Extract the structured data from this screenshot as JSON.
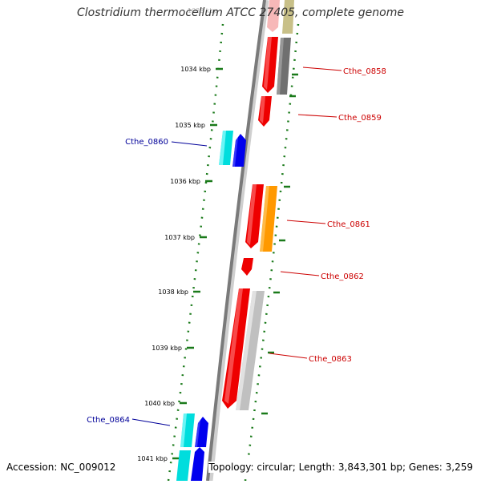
{
  "title": "Clostridium thermocellum ATCC 27405, complete genome",
  "footer": {
    "accession": "Accession: NC_009012",
    "summary": "Topology: circular; Length: 3,843,301 bp; Genes: 3,259"
  },
  "ticks": [
    {
      "label": "1034 kbp"
    },
    {
      "label": "1035 kbp"
    },
    {
      "label": "1036 kbp"
    },
    {
      "label": "1037 kbp"
    },
    {
      "label": "1038 kbp"
    },
    {
      "label": "1039 kbp"
    },
    {
      "label": "1040 kbp"
    },
    {
      "label": "1041 kbp"
    }
  ],
  "gene_labels": [
    {
      "name": "Cthe_0858",
      "color": "#cc0000"
    },
    {
      "name": "Cthe_0859",
      "color": "#cc0000"
    },
    {
      "name": "Cthe_0860",
      "color": "#000099"
    },
    {
      "name": "Cthe_0861",
      "color": "#cc0000"
    },
    {
      "name": "Cthe_0862",
      "color": "#cc0000"
    },
    {
      "name": "Cthe_0863",
      "color": "#cc0000"
    },
    {
      "name": "Cthe_0864",
      "color": "#000099"
    }
  ],
  "colors": {
    "backbone": "#7a7a7a",
    "tick": "#1a7a1a",
    "gene_red": "#ee0000",
    "gene_cyan": "#00dddd",
    "gene_blue": "#0000ee",
    "gene_orange": "#ff9900",
    "gene_dark_gray": "#707070",
    "gene_light_gray": "#c0c0c0",
    "gene_pink": "#f7b8b8",
    "gene_khaki": "#c8c088"
  }
}
